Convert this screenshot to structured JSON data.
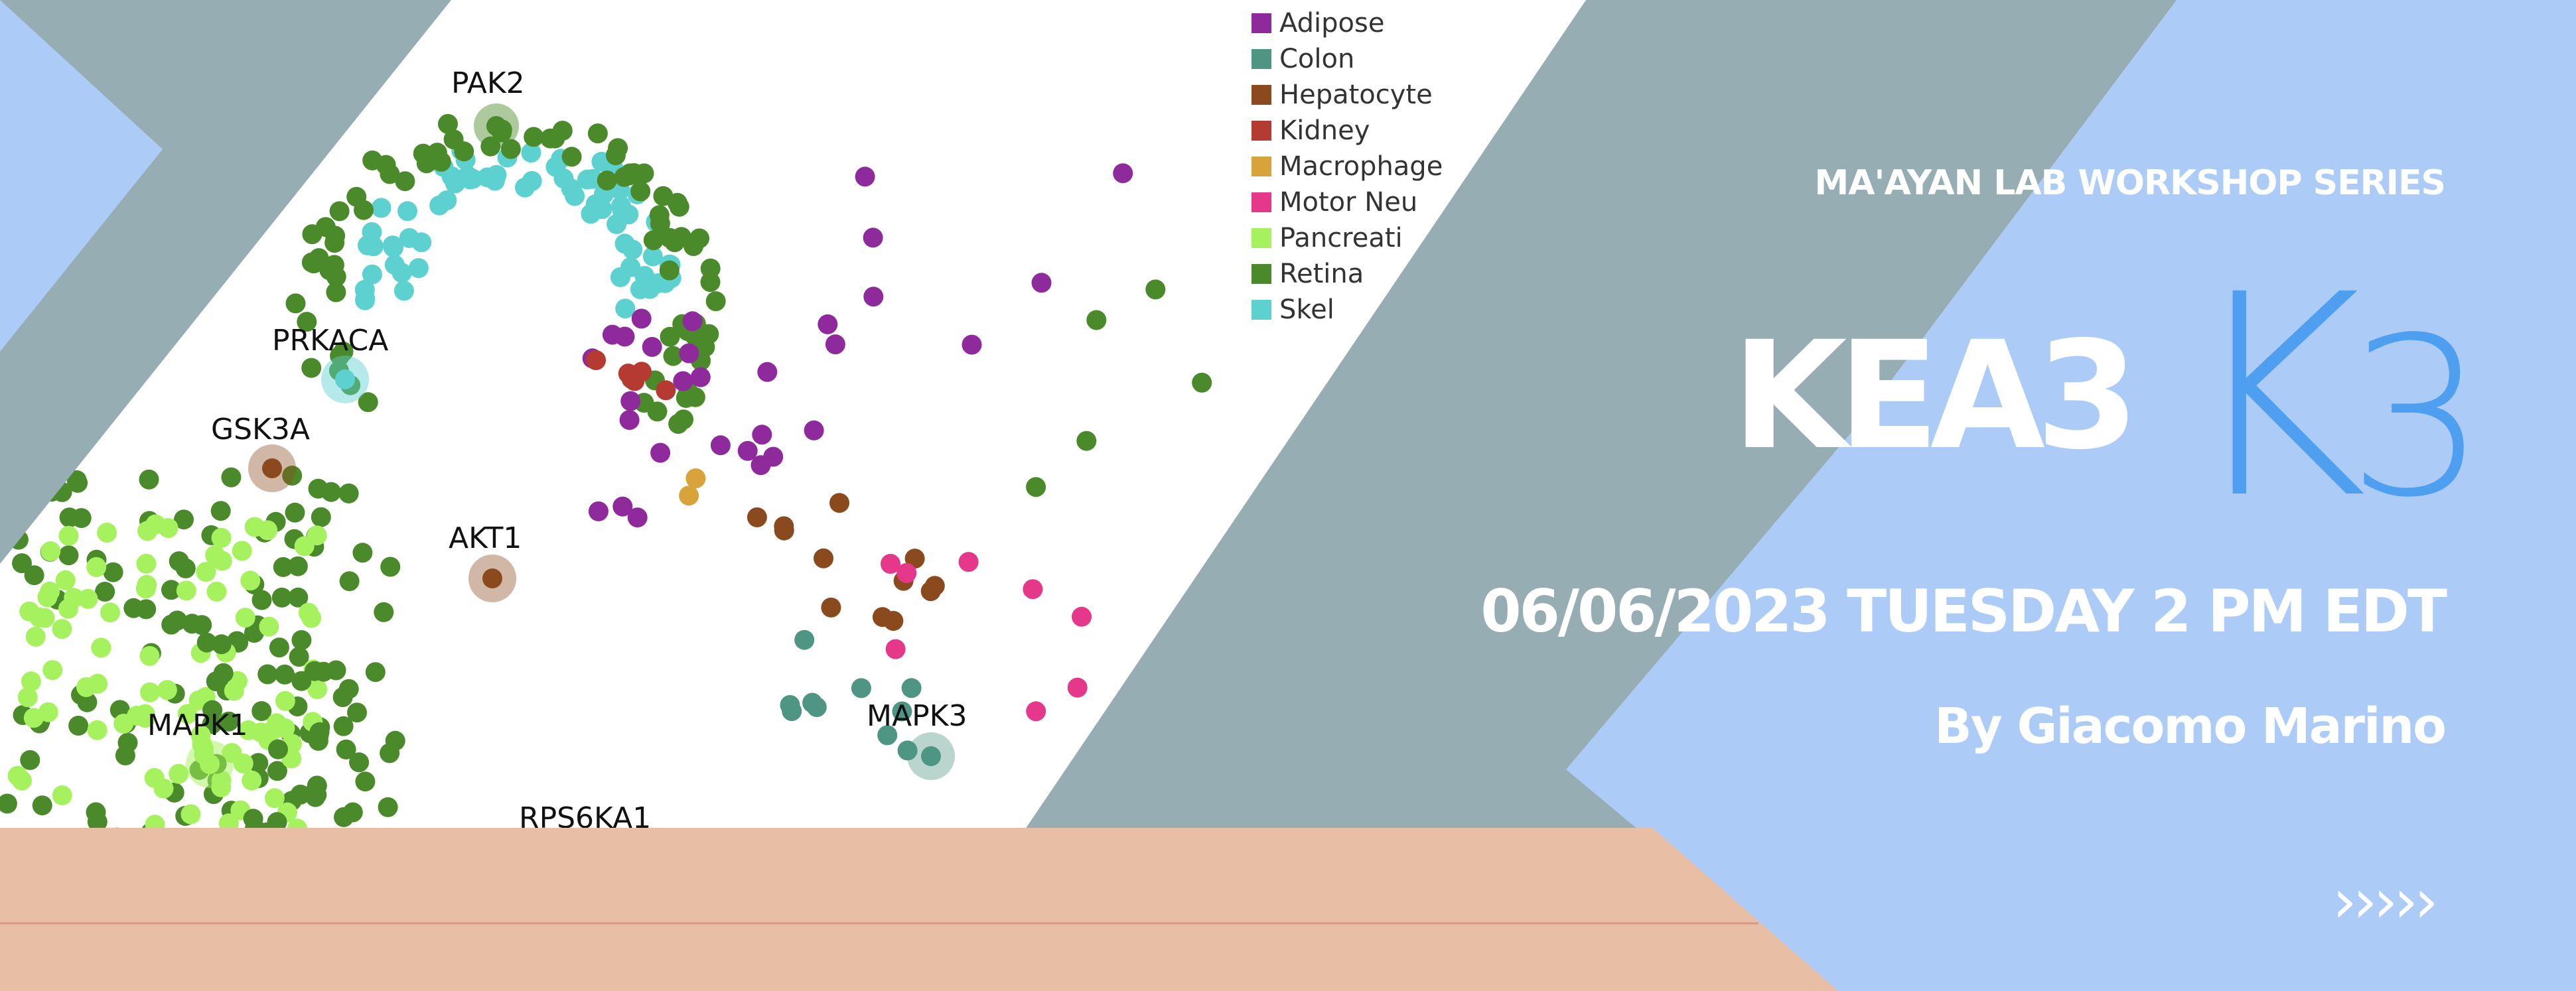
{
  "banner": {
    "series_label": "MA'AYAN LAB WORKSHOP SERIES",
    "title": "KEA3",
    "logo_letter": "K",
    "logo_number": "3",
    "date_line": "06/06/2023 TUESDAY 2 PM EDT",
    "author_line": "By Giacomo Marino",
    "next_glyph": "›››››"
  },
  "network_figure": {
    "kinase_labels": [
      "PAK2",
      "PRKACA",
      "GSK3A",
      "AKT1",
      "MAPK1",
      "MAPK3",
      "RPS6KA1"
    ],
    "legend": [
      {
        "label": "Adipose",
        "color": "#8e2a9c"
      },
      {
        "label": "Colon",
        "color": "#4f9584"
      },
      {
        "label": "Hepatocyte",
        "color": "#8b4a1d"
      },
      {
        "label": "Kidney",
        "color": "#b53b32"
      },
      {
        "label": "Macrophage",
        "color": "#d9a33c"
      },
      {
        "label": "Motor Neu",
        "color": "#e5388b"
      },
      {
        "label": "Pancreati",
        "color": "#a6f25e"
      },
      {
        "label": "Retina",
        "color": "#4a8a2a"
      },
      {
        "label": "Skel",
        "color": "#5dd1d0"
      }
    ]
  },
  "colors": {
    "slate": "#96adb3",
    "light_blue": "#acccf7",
    "peach": "#e8bea5",
    "logo_blue": "#4f9ff0"
  }
}
